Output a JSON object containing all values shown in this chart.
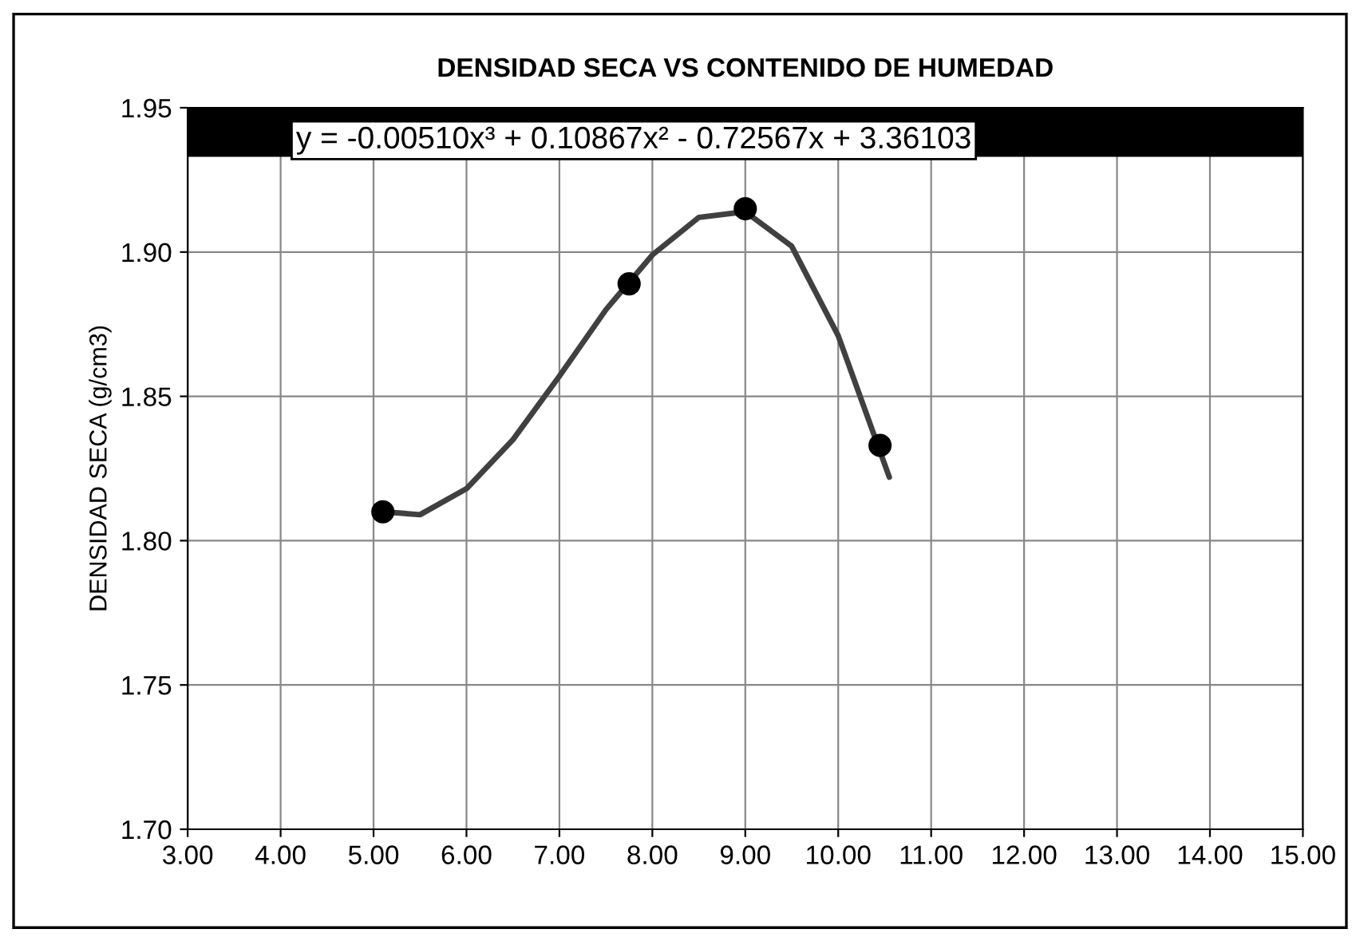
{
  "chart_data": {
    "type": "scatter",
    "title": "DENSIDAD SECA VS CONTENIDO DE HUMEDAD",
    "ylabel": "DENSIDAD SECA (g/cm3)",
    "series": [
      {
        "color": "#000000",
        "marker": "circle",
        "x": [
          5.1,
          7.75,
          9.0,
          10.45
        ],
        "values": [
          1.81,
          1.889,
          1.915,
          1.833
        ]
      },
      {
        "type": "line",
        "color": "#404040",
        "line_style": "solid",
        "marker": "none",
        "x": [
          5.1,
          5.5,
          6,
          6.5,
          7,
          7.5,
          8,
          8.5,
          9,
          9.5,
          10,
          10.55
        ],
        "values": [
          1.81,
          1.809,
          1.818,
          1.835,
          1.857,
          1.88,
          1.899,
          1.912,
          1.914,
          1.902,
          1.871,
          1.822
        ]
      }
    ],
    "annotations": [
      "y = -0.00510x³ + 0.10867x² - 0.72567x + 3.36103"
    ],
    "bands": [
      {
        "axis": "y",
        "from": 1.933,
        "to": 1.95,
        "color": "#000000"
      }
    ],
    "xlim": [
      3,
      15
    ],
    "xticks": [
      {
        "value": 3,
        "label": "3.00"
      },
      {
        "value": 4,
        "label": "4.00"
      },
      {
        "value": 5,
        "label": "5.00"
      },
      {
        "value": 6,
        "label": "6.00"
      },
      {
        "value": 7,
        "label": "7.00"
      },
      {
        "value": 8,
        "label": "8.00"
      },
      {
        "value": 9,
        "label": "9.00"
      },
      {
        "value": 10,
        "label": "10.00"
      },
      {
        "value": 11,
        "label": "11.00"
      },
      {
        "value": 12,
        "label": "12.00"
      },
      {
        "value": 13,
        "label": "13.00"
      },
      {
        "value": 14,
        "label": "14.00"
      },
      {
        "value": 15,
        "label": "15.00"
      }
    ],
    "ylim": [
      1.7,
      1.95
    ],
    "yticks": [
      {
        "value": 1.7,
        "label": "1.70"
      },
      {
        "value": 1.75,
        "label": "1.75"
      },
      {
        "value": 1.8,
        "label": "1.80"
      },
      {
        "value": 1.85,
        "label": "1.85"
      },
      {
        "value": 1.9,
        "label": "1.90"
      },
      {
        "value": 1.95,
        "label": "1.95"
      }
    ],
    "grid": true,
    "legend": false
  }
}
